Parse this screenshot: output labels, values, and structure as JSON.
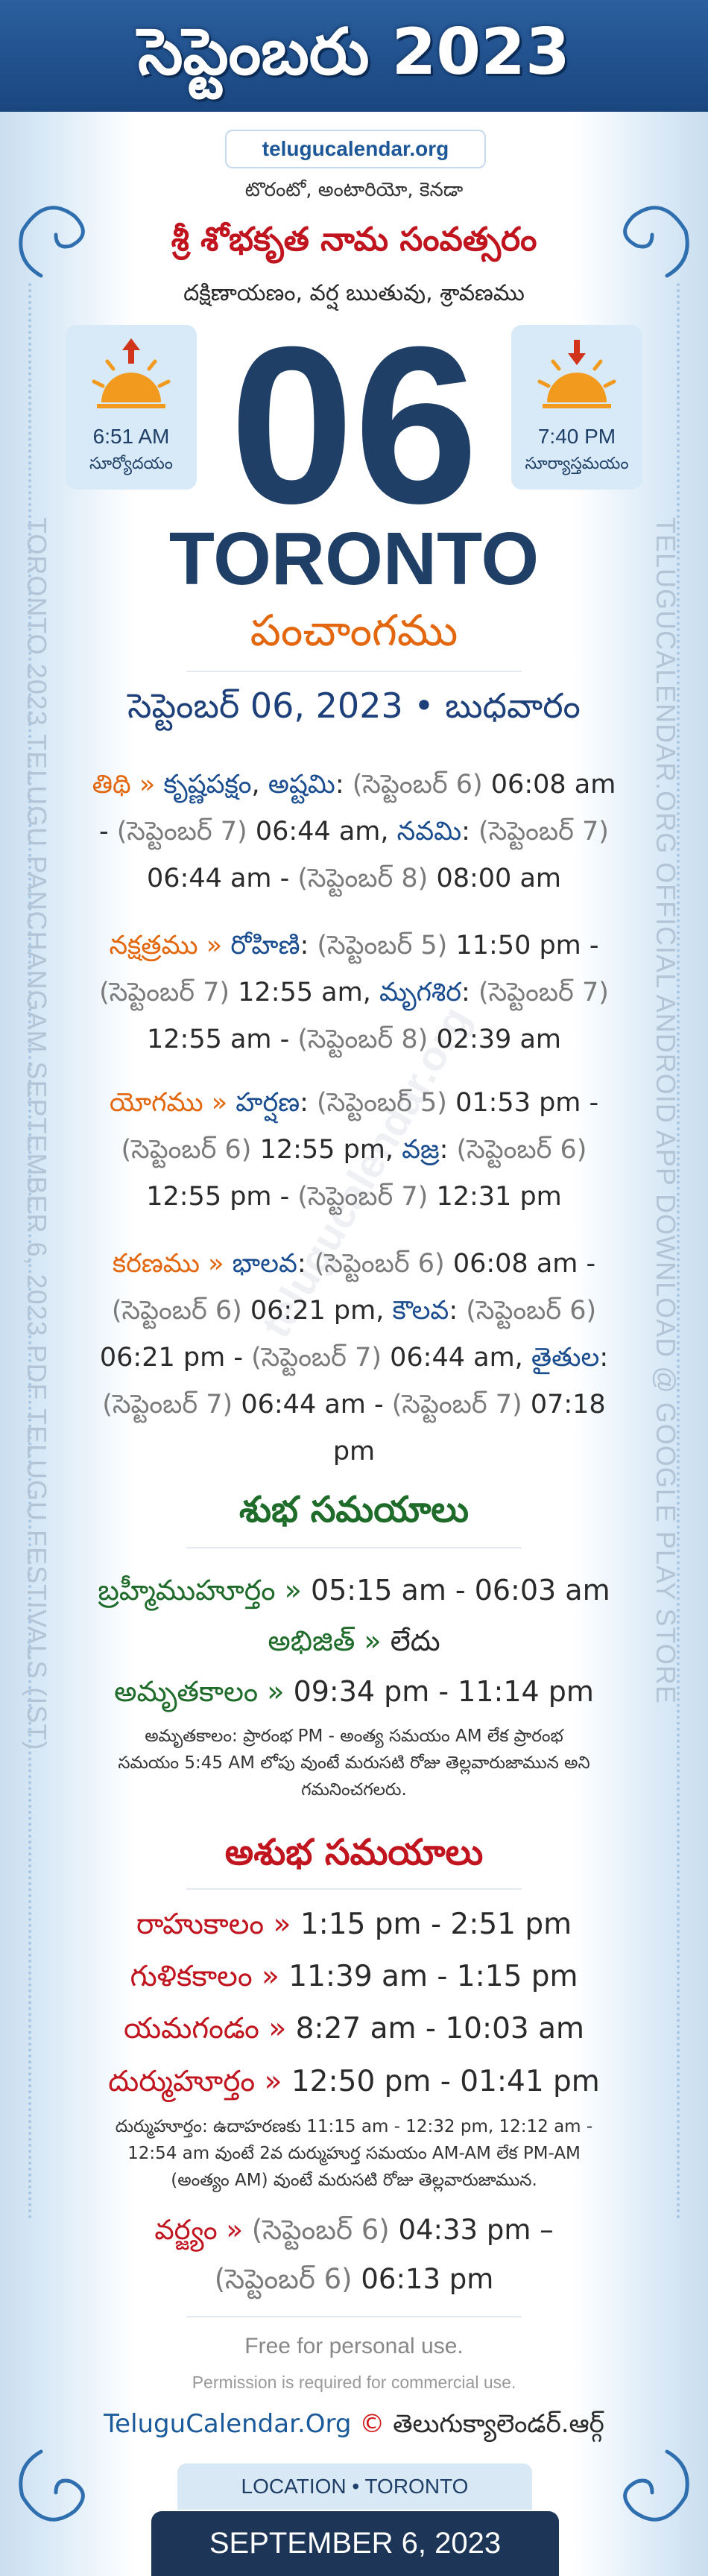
{
  "header": {
    "title": "సెప్టెంబరు 2023",
    "site": "telugucalendar.org"
  },
  "side_text": {
    "left": "TORONTO 2023 TELUGU PANCHANGAM SEPTEMBER 6, 2023 PDF TELUGU FESTIVALS (IST)",
    "right": "TELUGUCALENDAR.ORG OFFICIAL ANDROID APP DOWNLOAD @ GOOGLE PLAY STORE"
  },
  "watermark": "telugucalendar.org",
  "location": "టొరంటో, అంటారియో, కెనడా",
  "year_name": "శ్రీ శోభకృత నామ సంవత్సరం",
  "season": "దక్షిణాయణం, వర్ష ఋతువు, శ్రావణము",
  "sunrise": {
    "time": "6:51 AM",
    "label": "సూర్యోదయం"
  },
  "sunset": {
    "time": "7:40 PM",
    "label": "సూర్యాస్తమయం"
  },
  "day": "06",
  "city": "TORONTO",
  "panchangam": "పంచాంగము",
  "date_line": "సెప్టెంబర్ 06, 2023 • బుధవారం",
  "panchang": [
    {
      "segments": [
        {
          "text": "తిథి » ",
          "color": "#e2670f"
        },
        {
          "text": "కృష్ణపక్షం",
          "color": "#1a4d8f"
        },
        {
          "text": ", ",
          "color": "#2a2a2a"
        },
        {
          "text": "అష్టమి",
          "color": "#1a4d8f"
        },
        {
          "text": ": ",
          "color": "#2a2a2a"
        },
        {
          "text": "(సెప్టెంబర్ 6) ",
          "color": "#7a7a7a"
        },
        {
          "text": "06:08 am - ",
          "color": "#2a2a2a"
        },
        {
          "text": "(సెప్టెంబర్ 7) ",
          "color": "#7a7a7a"
        },
        {
          "text": "06:44 am, ",
          "color": "#2a2a2a"
        },
        {
          "text": "నవమి",
          "color": "#1a4d8f"
        },
        {
          "text": ": ",
          "color": "#2a2a2a"
        },
        {
          "text": "(సెప్టెంబర్ 7) ",
          "color": "#7a7a7a"
        },
        {
          "text": "06:44 am - ",
          "color": "#2a2a2a"
        },
        {
          "text": "(సెప్టెంబర్ 8) ",
          "color": "#7a7a7a"
        },
        {
          "text": "08:00 am",
          "color": "#2a2a2a"
        }
      ]
    },
    {
      "segments": [
        {
          "text": "నక్షత్రము » ",
          "color": "#e2670f"
        },
        {
          "text": "రోహిణి",
          "color": "#1a4d8f"
        },
        {
          "text": ": ",
          "color": "#2a2a2a"
        },
        {
          "text": "(సెప్టెంబర్ 5) ",
          "color": "#7a7a7a"
        },
        {
          "text": "11:50 pm - ",
          "color": "#2a2a2a"
        },
        {
          "text": "(సెప్టెంబర్ 7) ",
          "color": "#7a7a7a"
        },
        {
          "text": "12:55 am, ",
          "color": "#2a2a2a"
        },
        {
          "text": "మృగశిర",
          "color": "#1a4d8f"
        },
        {
          "text": ": ",
          "color": "#2a2a2a"
        },
        {
          "text": "(సెప్టెంబర్ 7) ",
          "color": "#7a7a7a"
        },
        {
          "text": "12:55 am - ",
          "color": "#2a2a2a"
        },
        {
          "text": "(సెప్టెంబర్ 8) ",
          "color": "#7a7a7a"
        },
        {
          "text": "02:39 am",
          "color": "#2a2a2a"
        }
      ]
    },
    {
      "segments": [
        {
          "text": "యోగము » ",
          "color": "#e2670f"
        },
        {
          "text": "హర్షణ",
          "color": "#1a4d8f"
        },
        {
          "text": ": ",
          "color": "#2a2a2a"
        },
        {
          "text": "(సెప్టెంబర్ 5) ",
          "color": "#7a7a7a"
        },
        {
          "text": "01:53 pm - ",
          "color": "#2a2a2a"
        },
        {
          "text": "(సెప్టెంబర్ 6) ",
          "color": "#7a7a7a"
        },
        {
          "text": "12:55 pm, ",
          "color": "#2a2a2a"
        },
        {
          "text": "వజ్ర",
          "color": "#1a4d8f"
        },
        {
          "text": ": ",
          "color": "#2a2a2a"
        },
        {
          "text": "(సెప్టెంబర్ 6) ",
          "color": "#7a7a7a"
        },
        {
          "text": "12:55 pm - ",
          "color": "#2a2a2a"
        },
        {
          "text": "(సెప్టెంబర్ 7) ",
          "color": "#7a7a7a"
        },
        {
          "text": "12:31 pm",
          "color": "#2a2a2a"
        }
      ]
    },
    {
      "segments": [
        {
          "text": "కరణము » ",
          "color": "#e2670f"
        },
        {
          "text": "భాలవ",
          "color": "#1a4d8f"
        },
        {
          "text": ": ",
          "color": "#2a2a2a"
        },
        {
          "text": "(సెప్టెంబర్ 6) ",
          "color": "#7a7a7a"
        },
        {
          "text": "06:08 am - ",
          "color": "#2a2a2a"
        },
        {
          "text": "(సెప్టెంబర్ 6) ",
          "color": "#7a7a7a"
        },
        {
          "text": "06:21 pm, ",
          "color": "#2a2a2a"
        },
        {
          "text": "కౌలవ",
          "color": "#1a4d8f"
        },
        {
          "text": ": ",
          "color": "#2a2a2a"
        },
        {
          "text": "(సెప్టెంబర్ 6) ",
          "color": "#7a7a7a"
        },
        {
          "text": "06:21 pm - ",
          "color": "#2a2a2a"
        },
        {
          "text": "(సెప్టెంబర్ 7) ",
          "color": "#7a7a7a"
        },
        {
          "text": "06:44 am, ",
          "color": "#2a2a2a"
        },
        {
          "text": "తైతుల",
          "color": "#1a4d8f"
        },
        {
          "text": ": ",
          "color": "#2a2a2a"
        },
        {
          "text": "(సెప్టెంబర్ 7) ",
          "color": "#7a7a7a"
        },
        {
          "text": "06:44 am - ",
          "color": "#2a2a2a"
        },
        {
          "text": "(సెప్టెంబర్ 7) ",
          "color": "#7a7a7a"
        },
        {
          "text": "07:18 pm",
          "color": "#2a2a2a"
        }
      ]
    }
  ],
  "shubha": {
    "heading": "శుభ సమయాలు",
    "items": [
      {
        "segments": [
          {
            "text": "బ్రహ్మీముహూర్తం » ",
            "color": "#1f6b2a"
          },
          {
            "text": "05:15 am - 06:03 am",
            "color": "#2a2a2a"
          }
        ]
      },
      {
        "segments": [
          {
            "text": "అభిజిత్ » ",
            "color": "#1f6b2a"
          },
          {
            "text": "లేదు",
            "color": "#2a2a2a"
          }
        ]
      },
      {
        "segments": [
          {
            "text": "అమృతకాలం » ",
            "color": "#1f6b2a"
          },
          {
            "text": "09:34 pm - 11:14 pm",
            "color": "#2a2a2a"
          }
        ]
      }
    ],
    "note": "అమృతకాలం: ప్రారంభ PM - అంత్య సమయం AM లేక ప్రారంభ సమయం 5:45 AM లోపు వుంటే మరుసటి రోజు తెల్లవారుజామున అని గమనించగలరు."
  },
  "ashubha": {
    "heading": "అశుభ సమయాలు",
    "items": [
      {
        "segments": [
          {
            "text": "రాహుకాలం » ",
            "color": "#c0141e"
          },
          {
            "text": "1:15 pm - 2:51 pm",
            "color": "#2a2a2a"
          }
        ]
      },
      {
        "segments": [
          {
            "text": "గుళికకాలం » ",
            "color": "#c0141e"
          },
          {
            "text": "11:39 am - 1:15 pm",
            "color": "#2a2a2a"
          }
        ]
      },
      {
        "segments": [
          {
            "text": "యమగండం » ",
            "color": "#c0141e"
          },
          {
            "text": "8:27 am - 10:03 am",
            "color": "#2a2a2a"
          }
        ]
      },
      {
        "segments": [
          {
            "text": "దుర్ముహూర్తం » ",
            "color": "#c0141e"
          },
          {
            "text": "12:50 pm - 01:41 pm",
            "color": "#2a2a2a"
          }
        ]
      }
    ],
    "note": "దుర్ముహూర్తం: ఉదాహరణకు 11:15 am - 12:32 pm, 12:12 am - 12:54 am వుంటే 2వ దుర్ముహుర్త సమయం AM-AM లేక PM-AM (అంత్యం AM) వుంటే మరుసటి రోజు తెల్లవారుజామున.",
    "varjyam": {
      "segments": [
        {
          "text": "వర్జ్యం » ",
          "color": "#c0141e"
        },
        {
          "text": "(సెప్టెంబర్ 6) ",
          "color": "#7a7a7a"
        },
        {
          "text": "04:33 pm – ",
          "color": "#2a2a2a"
        },
        {
          "text": "(సెప్టెంబర్ 6) ",
          "color": "#7a7a7a"
        },
        {
          "text": "06:13 pm",
          "color": "#2a2a2a"
        }
      ]
    }
  },
  "footer": {
    "free": "Free for personal use.",
    "permission": "Permission is required for commercial use.",
    "credit": {
      "segments": [
        {
          "text": "TeluguCalendar.Org ",
          "color": "#1a5a9a"
        },
        {
          "text": "© ",
          "color": "#d11a1a"
        },
        {
          "text": "తెలుగుక్యాలెండర్.ఆర్గ్",
          "color": "#2a2a2a"
        }
      ]
    },
    "location": "LOCATION • TORONTO",
    "date": "SEPTEMBER 6, 2023"
  }
}
